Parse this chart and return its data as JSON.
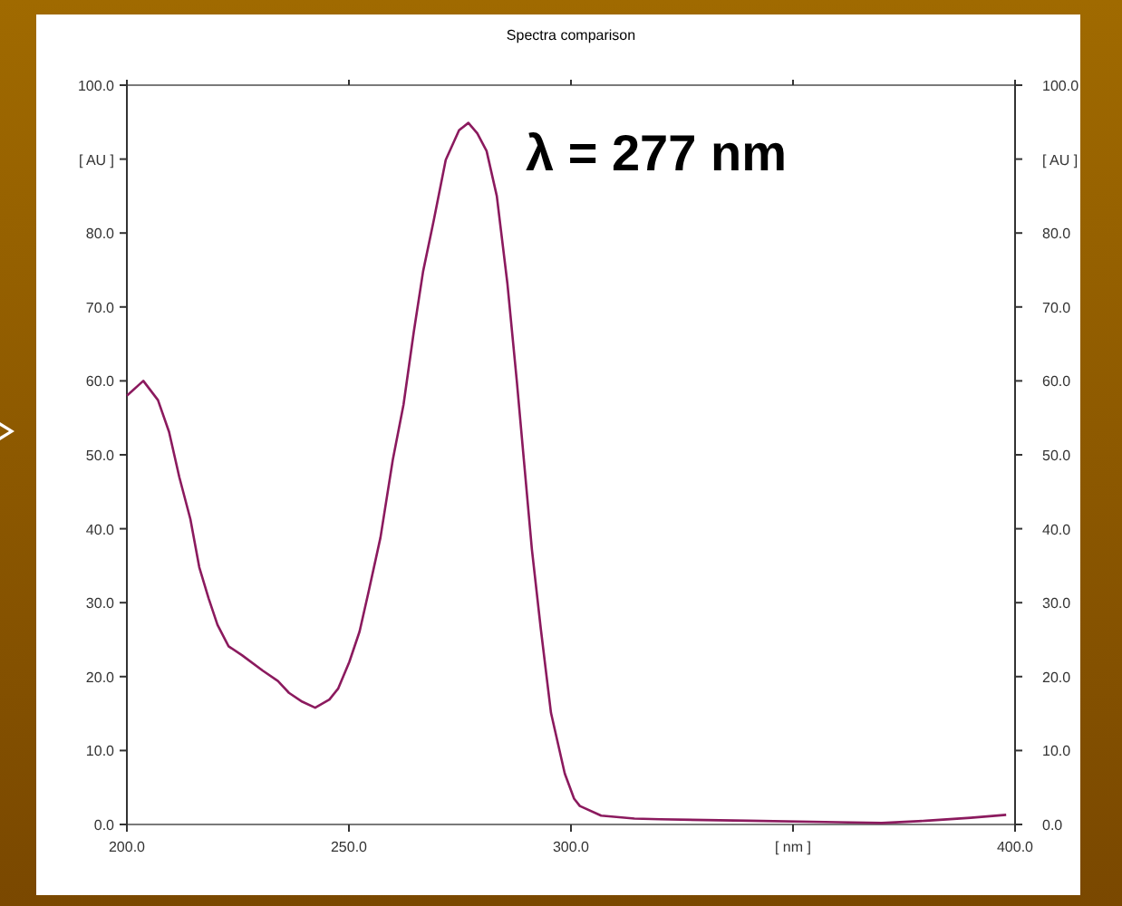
{
  "chart_data": {
    "type": "line",
    "title": "Spectra comparison",
    "xlabel": null,
    "x": [
      200,
      203.7,
      207,
      209.5,
      211.8,
      214.3,
      216.3,
      218.4,
      220.4,
      222.9,
      225.9,
      230.6,
      234,
      236.5,
      239.5,
      242.4,
      245.6,
      247.6,
      250.1,
      252.4,
      254.4,
      257.1,
      259.9,
      262.3,
      264.6,
      266.7,
      269.1,
      271.8,
      274.8,
      276.9,
      278.9,
      281,
      283.3,
      285.7,
      287.8,
      289.5,
      291.2,
      293.2,
      295.5,
      298.6,
      300.7,
      302,
      306.8,
      314.3,
      320,
      340,
      360,
      370,
      380,
      390,
      398
    ],
    "series": [
      {
        "color": "#8b1a5e",
        "values": [
          58,
          60,
          57.4,
          53.1,
          47,
          41.3,
          34.8,
          30.6,
          27,
          24.1,
          22.9,
          20.8,
          19.4,
          17.8,
          16.6,
          15.8,
          16.9,
          18.4,
          22,
          26.1,
          31.4,
          38.8,
          49.4,
          56.8,
          66.6,
          74.8,
          81.7,
          89.9,
          93.9,
          94.9,
          93.5,
          91.1,
          85,
          73.1,
          60,
          48.6,
          37.2,
          26.5,
          15.1,
          6.9,
          3.5,
          2.5,
          1.2,
          0.8,
          0.7,
          0.5,
          0.3,
          0.2,
          0.5,
          0.9,
          1.3
        ]
      }
    ],
    "xlim": [
      200,
      400
    ],
    "xticks": [
      {
        "value": 200,
        "label": "200.0"
      },
      {
        "value": 250,
        "label": "250.0"
      },
      {
        "value": 300,
        "label": "300.0"
      },
      {
        "value": 350,
        "label": "[ nm ]"
      },
      {
        "value": 400,
        "label": "400.0"
      }
    ],
    "ylim": [
      0,
      100
    ],
    "yticks": [
      {
        "value": 0,
        "label": "0.0"
      },
      {
        "value": 10,
        "label": "10.0"
      },
      {
        "value": 20,
        "label": "20.0"
      },
      {
        "value": 30,
        "label": "30.0"
      },
      {
        "value": 40,
        "label": "40.0"
      },
      {
        "value": 50,
        "label": "50.0"
      },
      {
        "value": 60,
        "label": "60.0"
      },
      {
        "value": 70,
        "label": "70.0"
      },
      {
        "value": 80,
        "label": "80.0"
      },
      {
        "value": 90,
        "label": "[ AU ]"
      },
      {
        "value": 100,
        "label": "100.0"
      }
    ],
    "y2lim": [
      0,
      100
    ],
    "y2ticks": [
      {
        "value": 0,
        "label": "0.0"
      },
      {
        "value": 10,
        "label": "10.0"
      },
      {
        "value": 20,
        "label": "20.0"
      },
      {
        "value": 30,
        "label": "30.0"
      },
      {
        "value": 40,
        "label": "40.0"
      },
      {
        "value": 50,
        "label": "50.0"
      },
      {
        "value": 60,
        "label": "60.0"
      },
      {
        "value": 70,
        "label": "70.0"
      },
      {
        "value": 80,
        "label": "80.0"
      },
      {
        "value": 90,
        "label": "[ AU ]"
      },
      {
        "value": 100,
        "label": "100.0"
      }
    ],
    "annotations": [
      "λ = 277 nm"
    ],
    "grid": false,
    "marker": "none",
    "line_style": "solid"
  }
}
